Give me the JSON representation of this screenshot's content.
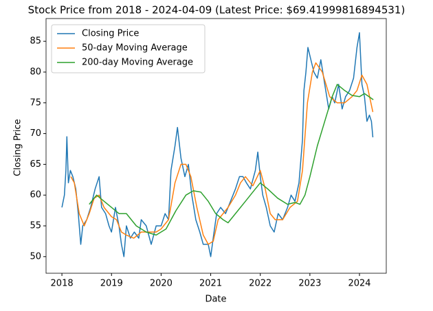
{
  "chart_data": {
    "type": "line",
    "title": "Stock Price from 2018 - 2024-04-09 (Latest Price: $69.41999816894531)",
    "xlabel": "Date",
    "ylabel": "Closing Price",
    "xlim": [
      2017.68,
      2024.54
    ],
    "xticks": [
      2018,
      2019,
      2020,
      2021,
      2022,
      2023,
      2024
    ],
    "ylim": [
      47.3,
      88.7
    ],
    "yticks": [
      50,
      55,
      60,
      65,
      70,
      75,
      80,
      85
    ],
    "legend": "upper left",
    "series": [
      {
        "name": "Closing Price",
        "color": "#1f77b4",
        "x": [
          2018.0,
          2018.05,
          2018.08,
          2018.1,
          2018.13,
          2018.17,
          2018.22,
          2018.28,
          2018.33,
          2018.38,
          2018.42,
          2018.5,
          2018.58,
          2018.67,
          2018.75,
          2018.8,
          2018.88,
          2018.95,
          2019.0,
          2019.08,
          2019.15,
          2019.2,
          2019.25,
          2019.3,
          2019.38,
          2019.46,
          2019.55,
          2019.6,
          2019.7,
          2019.8,
          2019.9,
          2020.0,
          2020.08,
          2020.15,
          2020.2,
          2020.28,
          2020.33,
          2020.4,
          2020.48,
          2020.55,
          2020.62,
          2020.7,
          2020.78,
          2020.85,
          2020.95,
          2021.0,
          2021.05,
          2021.12,
          2021.2,
          2021.3,
          2021.4,
          2021.5,
          2021.58,
          2021.65,
          2021.72,
          2021.8,
          2021.9,
          2021.95,
          2022.0,
          2022.05,
          2022.12,
          2022.2,
          2022.28,
          2022.36,
          2022.45,
          2022.55,
          2022.62,
          2022.7,
          2022.78,
          2022.85,
          2022.88,
          2022.92,
          2022.96,
          2023.02,
          2023.08,
          2023.15,
          2023.22,
          2023.3,
          2023.38,
          2023.45,
          2023.5,
          2023.58,
          2023.65,
          2023.72,
          2023.8,
          2023.88,
          2023.95,
          2024.0,
          2024.05,
          2024.1,
          2024.15,
          2024.2,
          2024.24,
          2024.27
        ],
        "values": [
          58,
          60,
          64,
          69.5,
          62,
          64,
          63,
          61,
          57,
          52,
          55,
          56,
          58,
          61,
          63,
          58,
          57,
          55,
          54,
          58,
          55,
          52,
          50,
          55,
          53,
          54,
          53,
          56,
          55,
          52,
          55,
          55,
          57,
          56,
          64,
          68,
          71,
          66,
          63,
          65,
          60,
          56,
          54,
          52,
          52,
          50,
          53,
          57,
          58,
          57,
          59,
          61,
          63,
          63,
          62,
          61,
          64,
          67,
          63,
          60,
          58,
          55,
          54,
          57,
          56,
          58,
          60,
          59,
          62,
          69,
          77,
          80,
          84,
          82,
          80,
          79,
          82,
          78,
          74,
          76,
          75,
          78,
          74,
          76,
          77,
          79,
          84,
          86.4,
          78,
          76,
          72,
          73,
          72,
          69.4
        ]
      },
      {
        "name": "50-day Moving Average",
        "color": "#ff7f0e",
        "x": [
          2018.18,
          2018.25,
          2018.35,
          2018.45,
          2018.55,
          2018.65,
          2018.75,
          2018.85,
          2019.0,
          2019.1,
          2019.2,
          2019.3,
          2019.45,
          2019.6,
          2019.75,
          2019.9,
          2020.0,
          2020.15,
          2020.28,
          2020.4,
          2020.5,
          2020.6,
          2020.72,
          2020.85,
          2020.95,
          2021.05,
          2021.15,
          2021.25,
          2021.35,
          2021.5,
          2021.6,
          2021.7,
          2021.85,
          2022.0,
          2022.1,
          2022.2,
          2022.3,
          2022.45,
          2022.6,
          2022.75,
          2022.85,
          2022.95,
          2023.05,
          2023.12,
          2023.25,
          2023.4,
          2023.55,
          2023.7,
          2023.85,
          2023.95,
          2024.05,
          2024.15,
          2024.27
        ],
        "values": [
          63,
          62,
          57,
          55,
          57,
          59.5,
          60,
          58,
          56.5,
          56,
          54,
          53.5,
          53,
          54,
          54,
          54,
          54.5,
          56,
          62,
          65,
          65,
          63,
          58,
          53.5,
          52,
          52.5,
          56,
          57,
          58,
          60,
          62,
          63,
          61.5,
          64,
          61,
          57,
          56,
          56,
          58,
          59,
          64,
          75,
          80,
          81.5,
          80,
          76,
          75,
          75,
          76,
          77,
          79.5,
          78,
          73.5
        ]
      },
      {
        "name": "200-day Moving Average",
        "color": "#2ca02c",
        "x": [
          2018.55,
          2018.7,
          2018.85,
          2019.0,
          2019.15,
          2019.3,
          2019.5,
          2019.7,
          2019.9,
          2020.1,
          2020.3,
          2020.5,
          2020.65,
          2020.8,
          2020.95,
          2021.1,
          2021.25,
          2021.35,
          2021.5,
          2021.7,
          2021.85,
          2022.0,
          2022.15,
          2022.35,
          2022.55,
          2022.7,
          2022.8,
          2022.9,
          2023.0,
          2023.15,
          2023.3,
          2023.45,
          2023.55,
          2023.7,
          2023.85,
          2024.0,
          2024.1,
          2024.28
        ],
        "values": [
          58.5,
          60,
          59,
          58,
          57,
          57,
          55,
          54,
          53.5,
          54.5,
          57.5,
          60,
          60.7,
          60.5,
          59,
          57,
          56,
          55.5,
          57,
          59,
          60.5,
          62,
          61,
          59.5,
          58.5,
          58.8,
          58.5,
          60,
          63,
          68,
          72,
          76,
          78,
          77,
          76.2,
          76,
          76.5,
          75.5
        ]
      }
    ]
  }
}
